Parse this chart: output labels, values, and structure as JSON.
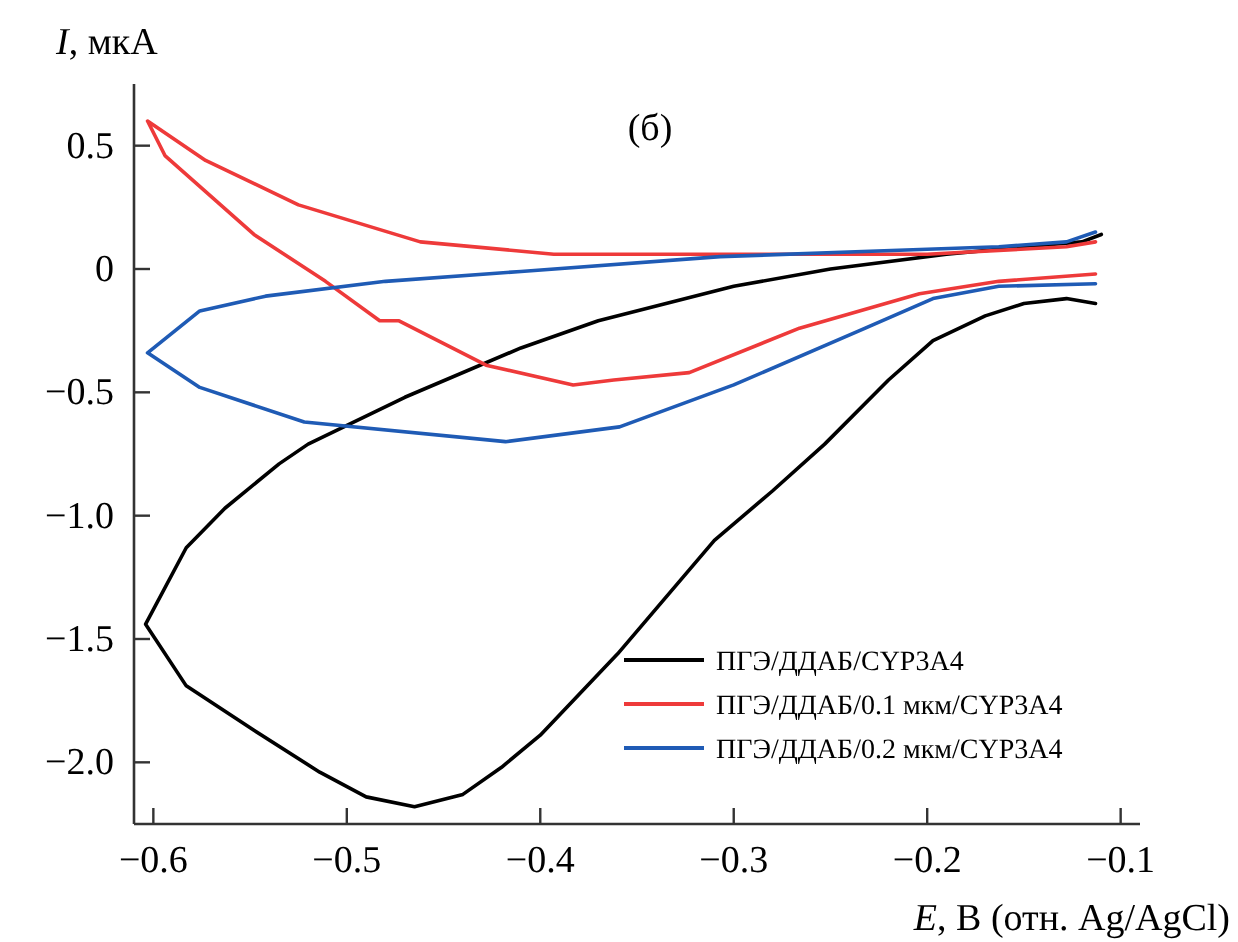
{
  "chart_data": {
    "type": "line",
    "title": "(б)",
    "xlabel": "E, В (отн. Ag/AgCl)",
    "ylabel": "I, мкА",
    "xlim": [
      -0.61,
      -0.09
    ],
    "ylim": [
      -2.25,
      0.75
    ],
    "xticks": [
      {
        "value": -0.6,
        "label": "−0.6"
      },
      {
        "value": -0.5,
        "label": "−0.5"
      },
      {
        "value": -0.4,
        "label": "−0.4"
      },
      {
        "value": -0.3,
        "label": "−0.3"
      },
      {
        "value": -0.2,
        "label": "−0.2"
      },
      {
        "value": -0.1,
        "label": "−0.1"
      }
    ],
    "yticks": [
      0.5,
      0,
      {
        "value": -0.5,
        "label": "−0.5"
      },
      {
        "value": -1,
        "label": "−1.0"
      },
      {
        "value": -1.5,
        "label": "−1.5"
      },
      {
        "value": -2,
        "label": "−2.0"
      }
    ],
    "grid": false,
    "legend": "bottom right",
    "line_style": "solid",
    "marker": "none",
    "series": [
      {
        "name": "ПГЭ/ДДАБ/CYP3A4",
        "color": "#000000",
        "x": [
          -0.113,
          -0.128,
          -0.15,
          -0.17,
          -0.197,
          -0.22,
          -0.253,
          -0.28,
          -0.31,
          -0.36,
          -0.4,
          -0.42,
          -0.44,
          -0.465,
          -0.49,
          -0.514,
          -0.548,
          -0.583,
          -0.604,
          -0.583,
          -0.563,
          -0.535,
          -0.52,
          -0.47,
          -0.41,
          -0.37,
          -0.3,
          -0.25,
          -0.19,
          -0.15,
          -0.12,
          -0.11
        ],
        "values": [
          -0.14,
          -0.12,
          -0.14,
          -0.19,
          -0.29,
          -0.45,
          -0.71,
          -0.9,
          -1.1,
          -1.56,
          -1.89,
          -2.02,
          -2.13,
          -2.18,
          -2.14,
          -2.04,
          -1.87,
          -1.69,
          -1.44,
          -1.13,
          -0.97,
          -0.79,
          -0.71,
          -0.52,
          -0.32,
          -0.21,
          -0.07,
          0.0,
          0.06,
          0.09,
          0.11,
          0.14
        ]
      },
      {
        "name": "ПГЭ/ДДАБ/0.1 мкм/CYP3A4",
        "color": "#ee3a3a",
        "x": [
          -0.113,
          -0.163,
          -0.204,
          -0.266,
          -0.323,
          -0.362,
          -0.383,
          -0.428,
          -0.473,
          -0.483,
          -0.511,
          -0.548,
          -0.594,
          -0.603,
          -0.573,
          -0.525,
          -0.462,
          -0.393,
          -0.2,
          -0.128,
          -0.113
        ],
        "values": [
          -0.02,
          -0.05,
          -0.1,
          -0.24,
          -0.42,
          -0.45,
          -0.47,
          -0.39,
          -0.21,
          -0.21,
          -0.05,
          0.14,
          0.46,
          0.6,
          0.44,
          0.26,
          0.11,
          0.06,
          0.06,
          0.09,
          0.11
        ]
      },
      {
        "name": "ПГЭ/ДДАБ/0.2 мкм/CYP3A4",
        "color": "#1f5bb5",
        "x": [
          -0.113,
          -0.163,
          -0.197,
          -0.232,
          -0.3,
          -0.359,
          -0.418,
          -0.522,
          -0.576,
          -0.603,
          -0.576,
          -0.542,
          -0.48,
          -0.41,
          -0.307,
          -0.2,
          -0.163,
          -0.128,
          -0.113
        ],
        "values": [
          -0.06,
          -0.07,
          -0.12,
          -0.24,
          -0.47,
          -0.64,
          -0.7,
          -0.62,
          -0.48,
          -0.34,
          -0.17,
          -0.11,
          -0.05,
          -0.01,
          0.05,
          0.08,
          0.09,
          0.11,
          0.15
        ]
      }
    ]
  }
}
